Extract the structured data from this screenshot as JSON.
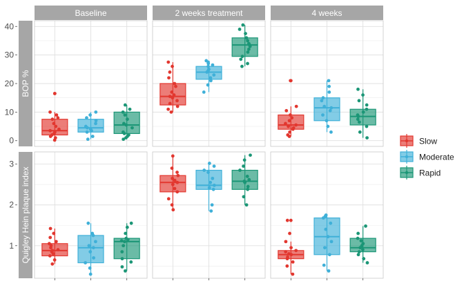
{
  "chart_data": {
    "type": "boxplot",
    "facet_columns": [
      "Baseline",
      "2 weeks treatment",
      "4 weeks"
    ],
    "panels": [
      {
        "ylabel": "BOP %",
        "yticks": [
          0,
          10,
          20,
          30,
          40
        ],
        "ylim": [
          -2,
          42
        ],
        "series": [
          {
            "name": "Slow",
            "boxes": [
              {
                "q1": 2,
                "median": 3.5,
                "q3": 7.5,
                "whisker_low": 0,
                "whisker_high": 10,
                "outliers": [
                  16.5
                ],
                "points": [
                  0.2,
                  1,
                  1.5,
                  2,
                  2.5,
                  3,
                  3.5,
                  4,
                  5,
                  6,
                  7.5,
                  8,
                  9,
                  10,
                  16.5
                ]
              },
              {
                "q1": 12.5,
                "median": 15.5,
                "q3": 20,
                "whisker_low": 10,
                "whisker_high": 27.5,
                "outliers": [],
                "points": [
                  10,
                  11,
                  12,
                  13,
                  14,
                  15,
                  15.5,
                  16,
                  17,
                  19,
                  20,
                  22,
                  24,
                  26,
                  27.5
                ]
              },
              {
                "q1": 4,
                "median": 5.5,
                "q3": 9,
                "whisker_low": 1.5,
                "whisker_high": 12,
                "outliers": [
                  21
                ],
                "points": [
                  1.5,
                  2,
                  3,
                  4,
                  4.5,
                  5,
                  5.5,
                  6,
                  7,
                  8,
                  9,
                  10.5,
                  12,
                  21
                ]
              }
            ]
          },
          {
            "name": "Moderate",
            "boxes": [
              {
                "q1": 3,
                "median": 4.5,
                "q3": 7.5,
                "whisker_low": 0.5,
                "whisker_high": 10,
                "outliers": [],
                "points": [
                  0.5,
                  1.5,
                  3,
                  3.5,
                  4,
                  4.5,
                  5,
                  6,
                  7,
                  8,
                  9,
                  10
                ]
              },
              {
                "q1": 21.5,
                "median": 24,
                "q3": 26,
                "whisker_low": 17,
                "whisker_high": 28,
                "outliers": [],
                "points": [
                  17,
                  19.5,
                  21,
                  22,
                  23,
                  24,
                  24.5,
                  25,
                  26,
                  26.5,
                  27,
                  27.5,
                  28
                ]
              },
              {
                "q1": 7,
                "median": 11.5,
                "q3": 15,
                "whisker_low": 3,
                "whisker_high": 21,
                "outliers": [],
                "points": [
                  3,
                  5,
                  7,
                  9,
                  10.5,
                  11.5,
                  12,
                  14,
                  15,
                  17,
                  19,
                  21
                ]
              }
            ]
          },
          {
            "name": "Rapid",
            "boxes": [
              {
                "q1": 2.5,
                "median": 5.5,
                "q3": 10,
                "whisker_low": 0.5,
                "whisker_high": 12.5,
                "outliers": [],
                "points": [
                  0.5,
                  1,
                  1.5,
                  2,
                  2.5,
                  3,
                  4.5,
                  5.5,
                  6,
                  7.5,
                  9,
                  10,
                  11,
                  12.5
                ]
              },
              {
                "q1": 29.5,
                "median": 33.5,
                "q3": 36,
                "whisker_low": 26,
                "whisker_high": 40.5,
                "outliers": [],
                "points": [
                  26,
                  27,
                  28.5,
                  29.5,
                  31,
                  32,
                  33,
                  33.5,
                  34,
                  35,
                  36,
                  37.5,
                  39,
                  40.5
                ]
              },
              {
                "q1": 5.5,
                "median": 8.5,
                "q3": 11,
                "whisker_low": 1,
                "whisker_high": 18,
                "outliers": [],
                "points": [
                  1,
                  3,
                  5,
                  6.5,
                  7.5,
                  8.5,
                  9,
                  10,
                  11,
                  12.5,
                  14,
                  16,
                  18
                ]
              }
            ]
          }
        ]
      },
      {
        "ylabel": "Quigley Hein plaque index",
        "yticks": [
          1,
          2,
          3
        ],
        "ylim": [
          0.2,
          3.3
        ],
        "series": [
          {
            "name": "Slow",
            "boxes": [
              {
                "q1": 0.75,
                "median": 0.88,
                "q3": 1.05,
                "whisker_low": 0.55,
                "whisker_high": 1.42,
                "outliers": [],
                "points": [
                  0.55,
                  0.65,
                  0.75,
                  0.8,
                  0.85,
                  0.88,
                  0.9,
                  0.95,
                  1.0,
                  1.05,
                  1.1,
                  1.2,
                  1.3,
                  1.42
                ]
              },
              {
                "q1": 2.32,
                "median": 2.55,
                "q3": 2.72,
                "whisker_low": 1.88,
                "whisker_high": 3.2,
                "outliers": [],
                "points": [
                  1.88,
                  2.0,
                  2.15,
                  2.32,
                  2.4,
                  2.5,
                  2.55,
                  2.6,
                  2.65,
                  2.72,
                  2.8,
                  2.9,
                  3.2
                ]
              },
              {
                "q1": 0.68,
                "median": 0.78,
                "q3": 0.88,
                "whisker_low": 0.3,
                "whisker_high": 1.1,
                "outliers": [
                  1.62
                ],
                "points": [
                  0.3,
                  0.5,
                  0.6,
                  0.68,
                  0.72,
                  0.78,
                  0.8,
                  0.85,
                  0.88,
                  0.95,
                  1.1,
                  1.3,
                  1.62
                ]
              }
            ]
          },
          {
            "name": "Moderate",
            "boxes": [
              {
                "q1": 0.58,
                "median": 0.95,
                "q3": 1.25,
                "whisker_low": 0.3,
                "whisker_high": 1.55,
                "outliers": [],
                "points": [
                  0.3,
                  0.45,
                  0.58,
                  0.7,
                  0.85,
                  0.95,
                  1.0,
                  1.1,
                  1.25,
                  1.3,
                  1.55
                ]
              },
              {
                "q1": 2.38,
                "median": 2.48,
                "q3": 2.85,
                "whisker_low": 1.85,
                "whisker_high": 3.02,
                "outliers": [],
                "points": [
                  1.85,
                  2.0,
                  2.38,
                  2.42,
                  2.48,
                  2.55,
                  2.65,
                  2.8,
                  2.85,
                  2.95,
                  3.02
                ]
              },
              {
                "q1": 0.78,
                "median": 1.22,
                "q3": 1.68,
                "whisker_low": 0.38,
                "whisker_high": 1.75,
                "outliers": [],
                "points": [
                  0.38,
                  0.52,
                  0.78,
                  0.95,
                  1.1,
                  1.22,
                  1.4,
                  1.55,
                  1.68,
                  1.72,
                  1.75
                ]
              }
            ]
          },
          {
            "name": "Rapid",
            "boxes": [
              {
                "q1": 0.68,
                "median": 1.1,
                "q3": 1.18,
                "whisker_low": 0.38,
                "whisker_high": 1.55,
                "outliers": [],
                "points": [
                  0.38,
                  0.48,
                  0.6,
                  0.68,
                  0.85,
                  1.0,
                  1.1,
                  1.12,
                  1.15,
                  1.18,
                  1.3,
                  1.45,
                  1.55
                ]
              },
              {
                "q1": 2.38,
                "median": 2.58,
                "q3": 2.85,
                "whisker_low": 2.0,
                "whisker_high": 3.22,
                "outliers": [],
                "points": [
                  2.0,
                  2.2,
                  2.38,
                  2.45,
                  2.55,
                  2.58,
                  2.62,
                  2.7,
                  2.85,
                  2.95,
                  3.1,
                  3.22
                ]
              },
              {
                "q1": 0.85,
                "median": 0.95,
                "q3": 1.18,
                "whisker_low": 0.58,
                "whisker_high": 1.48,
                "outliers": [],
                "points": [
                  0.58,
                  0.68,
                  0.78,
                  0.85,
                  0.9,
                  0.95,
                  1.0,
                  1.05,
                  1.12,
                  1.18,
                  1.3,
                  1.48
                ]
              }
            ]
          }
        ]
      }
    ],
    "legend": {
      "position": "right",
      "entries": [
        "Slow",
        "Moderate",
        "Rapid"
      ]
    },
    "colors": {
      "Slow": "#e2372f",
      "Moderate": "#3fb0d8",
      "Rapid": "#1b9676"
    },
    "grid": true
  }
}
